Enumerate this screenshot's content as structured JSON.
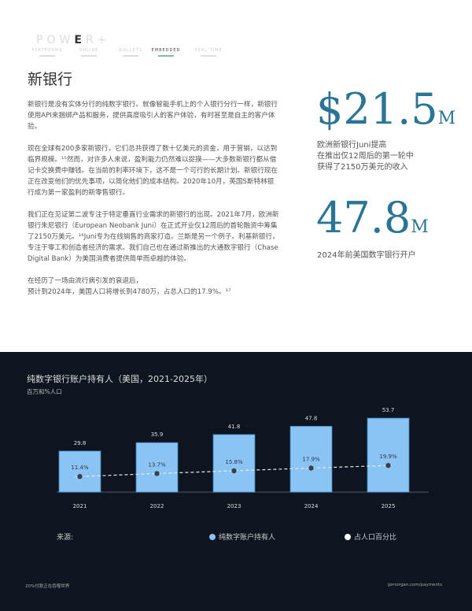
{
  "header": {
    "logo_prefix": "POW",
    "logo_highlight": "E",
    "logo_suffix": "R+",
    "nav": [
      {
        "label": "PLATFORMS"
      },
      {
        "label": "ONLINE"
      },
      {
        "label": "WALLETS"
      },
      {
        "label": "EMBEDDED",
        "active": true
      },
      {
        "label": "REAL TIME"
      }
    ]
  },
  "article": {
    "title": "新银行",
    "paragraphs": [
      "新银行是没有实体分行的纯数字银行。就像智能手机上的个人银行分行一样，新银行使用API来捆绑产品和服务，提供高度吸引人的客户体验，有时甚至是自主的客户体验。",
      "现在全球有200多家新银行，它们总共获得了数十亿美元的资金，用于营销，以达到临界规模。¹⁵然而，对许多人来说，盈利能力仍然难以捉摸——大多数新银行都从借记卡交换费中赚钱。在当前的利率环境下，这不是一个可行的长期计划。新银行现在正在改变他们的优先事项，以简化他们的成本结构。2020年10月，英国S斯特林银行成为第一家盈利的新零售银行。",
      "我们正在见证第二波专注于特定垂直行业需求的新银行的出现。2021年7月，欧洲新银行朱尼银行（European Neobank Juni）在正式开业仅12周后的首轮融资中筹集了2150万美元。¹⁶Juni专为在线销售的商家打造。兰斯是另一个例子。利基新银行，专注于零工和创造者经济的需求。我们自己也在通过新推出的大通数字银行（Chase Digital Bank）为美国消费者提供简单而卓越的体验。",
      "在经历了一场由流行病引发的衰退后，\n预计到2024年，美国人口将增长到4780万，占总人口的17.9%。¹⁷"
    ]
  },
  "stats": [
    {
      "value": "$21.5",
      "unit": "M",
      "label": "欧洲新银行Juni提高\n在推出仅12周后的第一轮中\n获得了2150万美元的收入"
    },
    {
      "value": "47.8",
      "unit": "M",
      "label": "2024年前美国数字银行开户"
    }
  ],
  "chart_data": {
    "type": "bar",
    "title": "纯数字银行账户持有人（美国，2021-2025年）",
    "subtitle": "百万和%人口",
    "categories": [
      "2021",
      "2022",
      "2023",
      "2024",
      "2025"
    ],
    "series": [
      {
        "name": "纯数字账户持有人",
        "type": "bar",
        "values": [
          29.8,
          35.9,
          41.8,
          47.8,
          53.7
        ],
        "labels": [
          "29.8",
          "35.9",
          "41.8",
          "47.8",
          "53.7"
        ],
        "color": "#8ac4f5"
      },
      {
        "name": "占人口百分比",
        "type": "line",
        "style": "dashed",
        "values": [
          11.4,
          13.7,
          15.8,
          17.9,
          19.9
        ],
        "labels": [
          "11.4%",
          "13.7%",
          "15.8%",
          "17.9%",
          "19.9%"
        ],
        "color": "#ffffff"
      }
    ],
    "source_label": "来源:"
  },
  "footer": {
    "left": "20%付款正在吞噬世界",
    "right": "jpmorgan.com/payments"
  },
  "colors": {
    "accent": "#2a7595",
    "dark_bg": "#0e1520",
    "bar": "#8ac4f5"
  }
}
